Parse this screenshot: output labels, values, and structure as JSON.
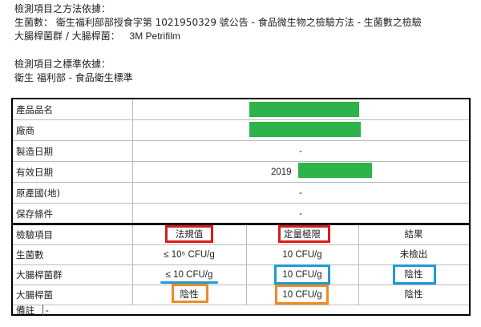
{
  "header": {
    "method_title": "檢測項目之方法依據：",
    "method_line1": "生菌數： 衛生福利部部授食字第 1021950329 號公告 - 食品微生物之檢驗方法 - 生菌數之檢驗",
    "method_line2_label": "大腸桿菌群 / 大腸桿菌：",
    "method_line2_value": "3M Petrifilm",
    "standard_title": "檢測項目之標準依據：",
    "standard_line": "衛生 福利部 - 食品衛生標準"
  },
  "info_rows": [
    {
      "label": "產品品名",
      "value": "",
      "redacted": true
    },
    {
      "label": "廠商",
      "value": "",
      "redacted": true
    },
    {
      "label": "製造日期",
      "value": "-",
      "redacted": false
    },
    {
      "label": "有效日期",
      "value": "2019",
      "redacted": true
    },
    {
      "label": "原產國(地)",
      "value": "-",
      "redacted": false
    },
    {
      "label": "保存條件",
      "value": "-",
      "redacted": false
    }
  ],
  "results_header": {
    "item": "檢驗項目",
    "regulation": "法規值",
    "limit": "定量極限",
    "result": "結果"
  },
  "results_rows": [
    {
      "item": "生菌數",
      "regulation": "≤ 10⁵ CFU/g",
      "limit": "10 CFU/g",
      "result": "未檢出"
    },
    {
      "item": "大腸桿菌群",
      "regulation": "≤ 10 CFU/g",
      "limit": "10 CFU/g",
      "result": "陰性"
    },
    {
      "item": "大腸桿菌",
      "regulation": "陰性",
      "limit": "10 CFU/g",
      "result": "陰性"
    }
  ],
  "remarks": {
    "label": "備註",
    "value": "-"
  },
  "colors": {
    "redaction": "#2db34a",
    "highlight_red": "#d81c1c",
    "highlight_blue": "#1f9ad6",
    "highlight_orange": "#f08a24"
  }
}
